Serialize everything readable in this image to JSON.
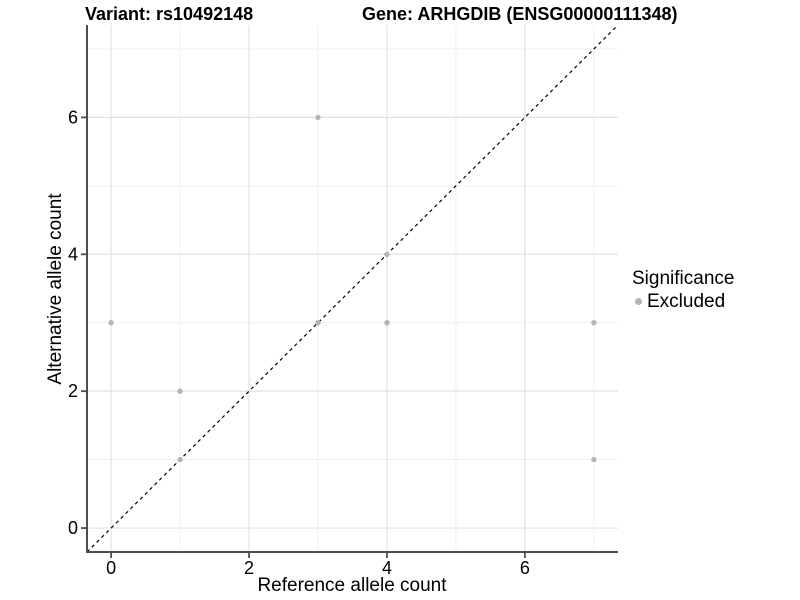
{
  "figure": {
    "title_variant": "Variant: rs10492148",
    "title_gene": "Gene: ARHGDIB (ENSG00000111348)"
  },
  "colors": {
    "point": "#b4b4b4",
    "grid_major": "#e2e2e2",
    "grid_minor": "#eeeeee",
    "axis_line": "#4d4d4d",
    "tick_mark": "#4d4d4d",
    "text": "#000000",
    "diagonal_line": "#000000"
  },
  "chart_data": {
    "type": "scatter",
    "title": "Variant: rs10492148    Gene: ARHGDIB (ENSG00000111348)",
    "xlabel": "Reference allele count",
    "ylabel": "Alternative allele count",
    "xlim": [
      -0.35,
      7.35
    ],
    "ylim": [
      -0.35,
      7.35
    ],
    "x_major_ticks": [
      0,
      2,
      4,
      6
    ],
    "y_major_ticks": [
      0,
      2,
      4,
      6
    ],
    "x_minor_gridlines": [
      1,
      3,
      5,
      7
    ],
    "y_minor_gridlines": [
      1,
      3,
      5,
      7
    ],
    "grid": true,
    "diagonal_line": {
      "type": "identity",
      "style": "dashed",
      "equation": "y = x"
    },
    "series": [
      {
        "name": "Excluded",
        "color": "#b4b4b4",
        "points": [
          [
            0,
            3
          ],
          [
            1,
            1
          ],
          [
            1,
            2
          ],
          [
            3,
            3
          ],
          [
            3,
            6
          ],
          [
            4,
            3
          ],
          [
            4,
            4
          ],
          [
            7,
            1
          ],
          [
            7,
            3
          ]
        ]
      }
    ],
    "legend": {
      "title": "Significance",
      "position": "right",
      "items": [
        {
          "label": "Excluded",
          "color": "#b4b4b4"
        }
      ]
    }
  }
}
